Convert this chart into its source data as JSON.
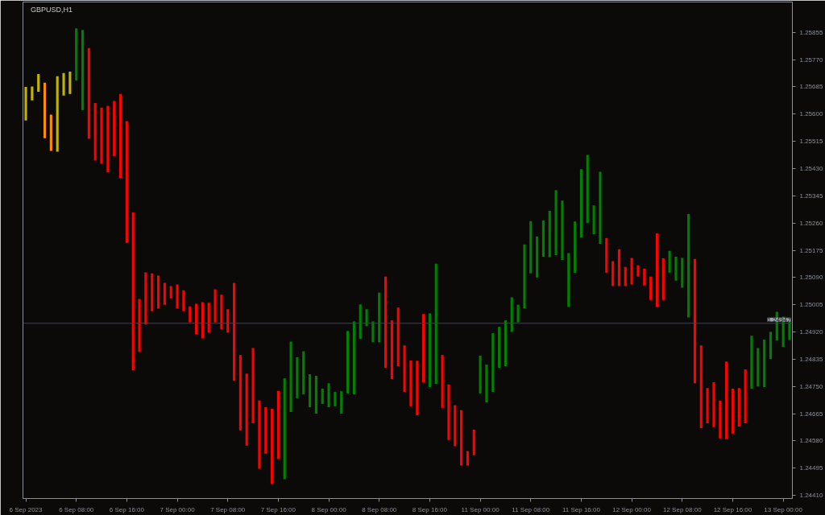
{
  "chart_data": {
    "type": "bar",
    "title": "GBPUSD,H1",
    "categories": [
      "6 Sep 2023",
      null,
      null,
      null,
      null,
      null,
      null,
      null,
      "6 Sep 08:00",
      null,
      null,
      null,
      null,
      null,
      null,
      null,
      "6 Sep 16:00",
      null,
      null,
      null,
      null,
      null,
      null,
      null,
      "7 Sep 00:00",
      null,
      null,
      null,
      null,
      null,
      null,
      null,
      "7 Sep 08:00",
      null,
      null,
      null,
      null,
      null,
      null,
      null,
      "7 Sep 16:00",
      null,
      null,
      null,
      null,
      null,
      null,
      null,
      "8 Sep 00:00",
      null,
      null,
      null,
      null,
      null,
      null,
      null,
      "8 Sep 08:00",
      null,
      null,
      null,
      null,
      null,
      null,
      null,
      "8 Sep 16:00",
      null,
      null,
      null,
      null,
      null,
      null,
      null,
      "11 Sep 00:00",
      null,
      null,
      null,
      null,
      null,
      null,
      null,
      "11 Sep 08:00",
      null,
      null,
      null,
      null,
      null,
      null,
      null,
      "11 Sep 16:00",
      null,
      null,
      null,
      null,
      null,
      null,
      null,
      "12 Sep 00:00",
      null,
      null,
      null,
      null,
      null,
      null,
      null,
      "12 Sep 08:00",
      null,
      null,
      null,
      null,
      null,
      null,
      null,
      "12 Sep 16:00",
      null,
      null,
      null,
      null,
      null,
      null,
      null,
      "13 Sep 00:00",
      null
    ],
    "base": [
      1.2558,
      1.25643,
      1.2567,
      1.25525,
      1.25485,
      1.25483,
      1.25658,
      1.25663,
      1.25705,
      1.25613,
      1.25523,
      1.25455,
      1.25445,
      1.25418,
      1.25468,
      1.254,
      1.25198,
      1.248,
      1.24858,
      1.24943,
      1.24985,
      1.24993,
      1.25005,
      1.25025,
      1.24993,
      1.24985,
      1.2495,
      1.24913,
      1.249,
      1.24918,
      1.2495,
      1.24928,
      1.24918,
      1.24768,
      1.24613,
      1.24565,
      1.24635,
      1.24493,
      1.2454,
      1.24445,
      1.24523,
      1.2446,
      1.2467,
      1.24713,
      1.24725,
      1.24685,
      1.24665,
      1.24695,
      1.24685,
      1.24688,
      1.24665,
      1.24728,
      1.24725,
      1.24898,
      1.24938,
      1.24888,
      1.24888,
      1.24808,
      1.24773,
      1.24813,
      1.24733,
      1.24688,
      1.2466,
      1.24763,
      1.24748,
      1.24758,
      1.24683,
      1.24583,
      1.24563,
      1.24503,
      1.24503,
      1.24535,
      1.24728,
      1.247,
      1.24733,
      1.24808,
      1.24813,
      1.2492,
      1.2495,
      1.24993,
      1.25103,
      1.2509,
      1.25155,
      1.25153,
      1.2516,
      1.25145,
      1.24998,
      1.25105,
      1.25215,
      1.2526,
      1.25225,
      1.25195,
      1.25105,
      1.25063,
      1.25063,
      1.25063,
      1.25068,
      1.25093,
      1.25065,
      1.2502,
      1.24998,
      1.2502,
      1.25105,
      1.2508,
      1.25058,
      1.24965,
      1.2476,
      1.2462,
      1.24635,
      1.24623,
      1.24588,
      1.24585,
      1.24603,
      1.24625,
      1.24635,
      1.24743,
      1.2475,
      1.24748,
      1.24835,
      1.24893,
      1.24873,
      1.24895
    ],
    "values": [
      0.00105,
      0.00043,
      0.00055,
      0.00173,
      0.00113,
      0.00235,
      0.0007,
      0.0007,
      0.00163,
      0.0025,
      0.00283,
      0.0018,
      0.00175,
      0.00208,
      0.00173,
      0.00263,
      0.0038,
      0.00493,
      0.00165,
      0.00163,
      0.00118,
      0.00103,
      0.00068,
      0.00038,
      0.00075,
      0.00065,
      0.0005,
      0.00095,
      0.00113,
      0.00093,
      0.00103,
      0.00108,
      0.00073,
      0.00305,
      0.00235,
      0.00225,
      0.00235,
      0.00213,
      0.00145,
      0.00235,
      0.00213,
      0.00315,
      0.0022,
      0.00128,
      0.00135,
      0.00103,
      0.00118,
      0.00048,
      0.00075,
      0.00045,
      0.0007,
      0.00195,
      0.00228,
      0.00108,
      0.00053,
      0.00065,
      0.00155,
      0.00285,
      0.00183,
      0.00183,
      0.00145,
      0.00143,
      0.0017,
      0.00213,
      0.0023,
      0.00375,
      0.00165,
      0.00173,
      0.00128,
      0.00173,
      0.00045,
      0.0008,
      0.00118,
      0.00118,
      0.00183,
      0.00128,
      0.00143,
      0.00108,
      0.00055,
      0.002,
      0.00163,
      0.00128,
      0.00113,
      0.00145,
      0.00203,
      0.00185,
      0.00168,
      0.0016,
      0.00213,
      0.00213,
      0.0009,
      0.00225,
      0.00108,
      0.00078,
      0.00115,
      0.0006,
      0.00083,
      0.00035,
      0.00053,
      0.00073,
      0.0023,
      0.0013,
      0.00068,
      0.00075,
      0.00093,
      0.00323,
      0.00388,
      0.00258,
      0.0011,
      0.0014,
      0.00118,
      0.00243,
      0.0014,
      0.0012,
      0.00168,
      0.00165,
      0.0012,
      0.00148,
      0.00085,
      0.0009,
      0.00095,
      0.0006
    ],
    "colors": [
      "#c0b400",
      "#c0b400",
      "#c0b400",
      "#ff8c00",
      "#ff8c00",
      "#c0b400",
      "#c0b400",
      "#c0b400",
      "#008000",
      "#008000",
      "#ff0000",
      "#ff0000",
      "#ff0000",
      "#ff0000",
      "#ff0000",
      "#ff0000",
      "#ff0000",
      "#ff0000",
      "#ff0000",
      "#ff0000",
      "#ff0000",
      "#ff0000",
      "#ff0000",
      "#ff0000",
      "#ff0000",
      "#ff0000",
      "#ff0000",
      "#ff0000",
      "#ff0000",
      "#ff0000",
      "#ff0000",
      "#ff0000",
      "#ff0000",
      "#ff0000",
      "#ff0000",
      "#ff0000",
      "#ff0000",
      "#ff0000",
      "#ff0000",
      "#ff0000",
      "#ff0000",
      "#008000",
      "#008000",
      "#008000",
      "#008000",
      "#008000",
      "#008000",
      "#008000",
      "#008000",
      "#008000",
      "#008000",
      "#008000",
      "#008000",
      "#008000",
      "#008000",
      "#008000",
      "#008000",
      "#ff0000",
      "#ff0000",
      "#ff0000",
      "#ff0000",
      "#ff0000",
      "#ff0000",
      "#ff0000",
      "#008000",
      "#008000",
      "#ff0000",
      "#ff0000",
      "#ff0000",
      "#ff0000",
      "#ff0000",
      "#ff0000",
      "#008000",
      "#008000",
      "#008000",
      "#008000",
      "#008000",
      "#008000",
      "#008000",
      "#008000",
      "#008000",
      "#008000",
      "#008000",
      "#008000",
      "#008000",
      "#008000",
      "#008000",
      "#008000",
      "#008000",
      "#008000",
      "#008000",
      "#008000",
      "#ff0000",
      "#ff0000",
      "#ff0000",
      "#ff0000",
      "#ff0000",
      "#ff0000",
      "#ff0000",
      "#ff0000",
      "#ff0000",
      "#ff0000",
      "#008000",
      "#008000",
      "#008000",
      "#008000",
      "#ff0000",
      "#ff0000",
      "#ff0000",
      "#ff0000",
      "#ff0000",
      "#ff0000",
      "#ff0000",
      "#ff0000",
      "#ff0000",
      "#008000",
      "#008000",
      "#008000",
      "#008000",
      "#008000",
      "#008000",
      "#008000"
    ],
    "ylim": [
      1.244,
      1.2595
    ],
    "yticks": [
      {
        "value": 1.2441,
        "label": "1.24410"
      },
      {
        "value": 1.24495,
        "label": "1.24495"
      },
      {
        "value": 1.2458,
        "label": "1.24580"
      },
      {
        "value": 1.24665,
        "label": "1.24665"
      },
      {
        "value": 1.2475,
        "label": "1.24750"
      },
      {
        "value": 1.24835,
        "label": "1.24835"
      },
      {
        "value": 1.2492,
        "label": "1.24920"
      },
      {
        "value": 1.25005,
        "label": "1.25005"
      },
      {
        "value": 1.2509,
        "label": "1.25090"
      },
      {
        "value": 1.25175,
        "label": "1.25175"
      },
      {
        "value": 1.2526,
        "label": "1.25260"
      },
      {
        "value": 1.25345,
        "label": "1.25345"
      },
      {
        "value": 1.2543,
        "label": "1.25430"
      },
      {
        "value": 1.25515,
        "label": "1.25515"
      },
      {
        "value": 1.256,
        "label": "1.25600"
      },
      {
        "value": 1.25685,
        "label": "1.25685"
      },
      {
        "value": 1.2577,
        "label": "1.25770"
      },
      {
        "value": 1.25855,
        "label": "1.25855"
      }
    ],
    "ref_lines": [
      {
        "axis": "y",
        "value": 1.24947,
        "label": "1.24947",
        "color": "#3a3f78"
      }
    ],
    "grid": false
  }
}
